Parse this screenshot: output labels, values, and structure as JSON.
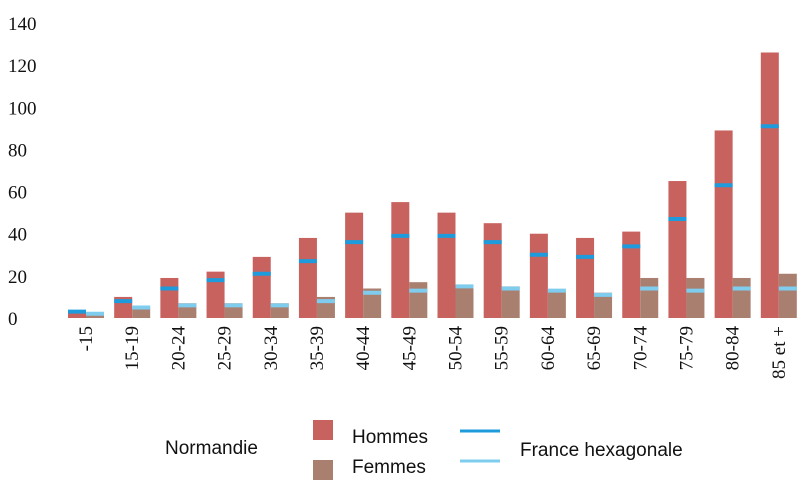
{
  "chart_data": {
    "type": "bar",
    "categories": [
      "-15",
      "15-19",
      "20-24",
      "25-29",
      "30-34",
      "35-39",
      "40-44",
      "45-49",
      "50-54",
      "55-59",
      "60-64",
      "65-69",
      "70-74",
      "75-79",
      "80-84",
      "85 et +"
    ],
    "legend_title": "Normandie",
    "series": [
      {
        "name": "Hommes",
        "color": "#c8625f",
        "values": [
          3,
          10,
          19,
          22,
          29,
          38,
          50,
          55,
          50,
          45,
          40,
          38,
          41,
          65,
          89,
          126
        ]
      },
      {
        "name": "Femmes",
        "color": "#a98070",
        "values": [
          2,
          5,
          7,
          7,
          7,
          10,
          14,
          17,
          15,
          15,
          13,
          12,
          19,
          19,
          19,
          21
        ]
      }
    ],
    "reference": {
      "name": "France hexagonale",
      "series": [
        {
          "color": "#1e9bdc",
          "values": [
            3,
            8,
            14,
            18,
            21,
            27,
            36,
            39,
            39,
            36,
            30,
            29,
            34,
            47,
            63,
            91
          ]
        },
        {
          "color": "#7fcdee",
          "values": [
            2,
            5,
            6,
            6,
            6,
            8,
            12,
            13,
            15,
            14,
            13,
            11,
            14,
            13,
            14,
            14
          ]
        }
      ]
    },
    "ylim": [
      0,
      140
    ],
    "yticks": [
      0,
      20,
      40,
      60,
      80,
      100,
      120,
      140
    ]
  }
}
